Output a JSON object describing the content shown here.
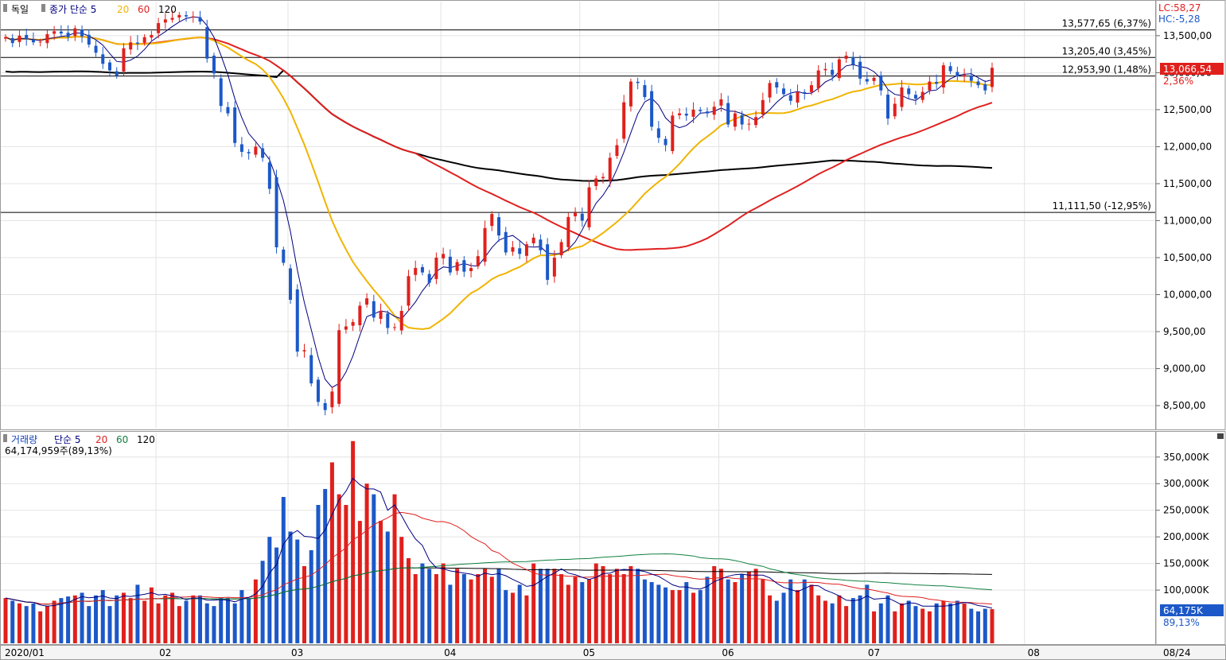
{
  "price_panel": {
    "legend": [
      {
        "text": "독일",
        "color": "#000000"
      },
      {
        "text": "종가 단순 5",
        "color": "#000080"
      },
      {
        "text": "20",
        "color": "#f0b400"
      },
      {
        "text": "60",
        "color": "#e02020"
      },
      {
        "text": "120",
        "color": "#000000"
      }
    ],
    "lc_label": "LC:58,27",
    "hc_label": "HC:-5,28",
    "current_price_label": "13,066,54",
    "current_change_label": "2,36%",
    "hlines": [
      {
        "value": 13577.65,
        "label": "13,577,65 (6,37%)"
      },
      {
        "value": 13205.4,
        "label": "13,205,40 (3,45%)"
      },
      {
        "value": 12953.9,
        "label": "12,953,90 (1,48%)"
      },
      {
        "value": 11111.5,
        "label": "11,111,50 (-12,95%)"
      }
    ]
  },
  "volume_panel": {
    "legend": [
      {
        "text": "거래량",
        "color": "#1040c0"
      },
      {
        "text": "단순 5",
        "color": "#000080"
      },
      {
        "text": "20",
        "color": "#e02020"
      },
      {
        "text": "60",
        "color": "#108040"
      },
      {
        "text": "120",
        "color": "#000000"
      }
    ],
    "info": "64,174,959주(89,13%)",
    "current_volume_label": "64,175K",
    "current_volume_pct": "89,13%"
  },
  "x_axis_labels": [
    "2020/01",
    "02",
    "03",
    "04",
    "05",
    "06",
    "07",
    "08",
    "08/24"
  ],
  "colors": {
    "up": "#e0201c",
    "down": "#1c58c8",
    "ma5": "#000080",
    "ma20": "#f0b400",
    "ma60": "#e02020",
    "ma120": "#000000",
    "vma5": "#000080",
    "vma20": "#e02020",
    "vma60": "#108040",
    "vma120": "#000000"
  },
  "chart_data": [
    {
      "type": "candlestick",
      "title": "독일",
      "y_ticks": [
        "13,500,00",
        "13,000,00",
        "12,500,00",
        "12,000,00",
        "11,500,00",
        "11,000,00",
        "10,500,00",
        "10,000,00",
        "9,500,00",
        "9,000,00",
        "8,500,00"
      ],
      "y_tick_values": [
        13500,
        13000,
        12500,
        12000,
        11500,
        11000,
        10500,
        10000,
        9500,
        9000,
        8500
      ],
      "ylim": [
        8200,
        13950
      ],
      "x_labels": [
        "2020/01",
        "02",
        "03",
        "04",
        "05",
        "06",
        "07",
        "08",
        "08/24"
      ],
      "grid": true,
      "moving_averages": [
        "종가 단순 5",
        "20",
        "60",
        "120"
      ],
      "closes": [
        13480,
        13400,
        13500,
        13450,
        13410,
        13420,
        13520,
        13560,
        13530,
        13480,
        13600,
        13490,
        13380,
        13270,
        13120,
        13030,
        12960,
        13330,
        13410,
        13390,
        13480,
        13510,
        13670,
        13720,
        13740,
        13780,
        13760,
        13760,
        13690,
        13190,
        12990,
        12550,
        12450,
        12050,
        11930,
        11910,
        12000,
        11850,
        11430,
        10640,
        10430,
        9930,
        9230,
        9250,
        8800,
        8550,
        8440,
        8690,
        9520,
        9570,
        9630,
        9850,
        9950,
        9690,
        9780,
        9550,
        9560,
        9780,
        10250,
        10360,
        10300,
        10160,
        10500,
        10550,
        10300,
        10440,
        10310,
        10360,
        10520,
        10900,
        11090,
        10800,
        10570,
        10640,
        10550,
        10680,
        10770,
        10600,
        10200,
        10500,
        10710,
        11050,
        11110,
        11000,
        11450,
        11570,
        11590,
        11850,
        12020,
        12600,
        12880,
        12860,
        12670,
        12270,
        12120,
        12020,
        12420,
        12450,
        12420,
        12500,
        12480,
        12450,
        12540,
        12640,
        12300,
        12450,
        12300,
        12310,
        12400,
        12630,
        12860,
        12800,
        12710,
        12620,
        12740,
        12720,
        12830,
        13030,
        13050,
        12970,
        13180,
        13230,
        13110,
        12920,
        12880,
        12930,
        12760,
        12380,
        12580,
        12800,
        12710,
        12650,
        12740,
        12880,
        12850,
        13100,
        13020,
        12950,
        12970,
        12890,
        12830,
        12760,
        13066
      ],
      "ma_colors_note": "5:navy 20:gold 60:red 120:black"
    },
    {
      "type": "bar",
      "title": "거래량",
      "y_ticks": [
        "350,000K",
        "300,000K",
        "250,000K",
        "200,000K",
        "150,000K",
        "100,000K"
      ],
      "y_tick_values": [
        350000,
        300000,
        250000,
        200000,
        150000,
        100000
      ],
      "ylim": [
        0,
        390000
      ],
      "units": "K",
      "moving_averages": [
        "단순 5",
        "20",
        "60",
        "120"
      ],
      "values": [
        85000,
        80000,
        75000,
        70000,
        75000,
        60000,
        70000,
        80000,
        85000,
        88000,
        90000,
        95000,
        70000,
        90000,
        100000,
        70000,
        90000,
        95000,
        85000,
        110000,
        80000,
        105000,
        75000,
        90000,
        95000,
        70000,
        80000,
        90000,
        90000,
        75000,
        70000,
        85000,
        85000,
        75000,
        100000,
        85000,
        120000,
        155000,
        200000,
        180000,
        275000,
        210000,
        195000,
        145000,
        175000,
        260000,
        290000,
        340000,
        280000,
        260000,
        380000,
        230000,
        300000,
        280000,
        230000,
        210000,
        280000,
        200000,
        160000,
        130000,
        150000,
        140000,
        130000,
        150000,
        110000,
        140000,
        130000,
        120000,
        130000,
        140000,
        125000,
        140000,
        100000,
        95000,
        110000,
        90000,
        150000,
        140000,
        140000,
        140000,
        130000,
        110000,
        125000,
        115000,
        120000,
        150000,
        145000,
        130000,
        140000,
        130000,
        145000,
        140000,
        120000,
        115000,
        110000,
        105000,
        100000,
        100000,
        115000,
        95000,
        100000,
        125000,
        145000,
        140000,
        120000,
        115000,
        130000,
        135000,
        140000,
        120000,
        90000,
        80000,
        95000,
        120000,
        100000,
        120000,
        110000,
        90000,
        80000,
        75000,
        90000,
        70000,
        85000,
        90000,
        110000,
        60000,
        75000,
        90000,
        60000,
        75000,
        80000,
        70000,
        65000,
        60000,
        75000,
        80000,
        75000,
        80000,
        75000,
        65000,
        60000,
        65000,
        64175
      ]
    }
  ]
}
